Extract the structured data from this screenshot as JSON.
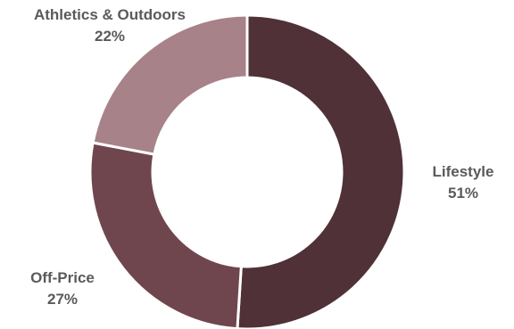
{
  "chart_data": {
    "type": "pie",
    "variant": "donut",
    "title": "",
    "categories": [
      "Lifestyle",
      "Off-Price",
      "Athletics & Outdoors"
    ],
    "values": [
      51,
      27,
      22
    ],
    "value_labels": [
      "51%",
      "27%",
      "22%"
    ],
    "colors": [
      "#4f3137",
      "#70464e",
      "#a88289"
    ],
    "legend": "none",
    "start": "top, clockwise"
  }
}
